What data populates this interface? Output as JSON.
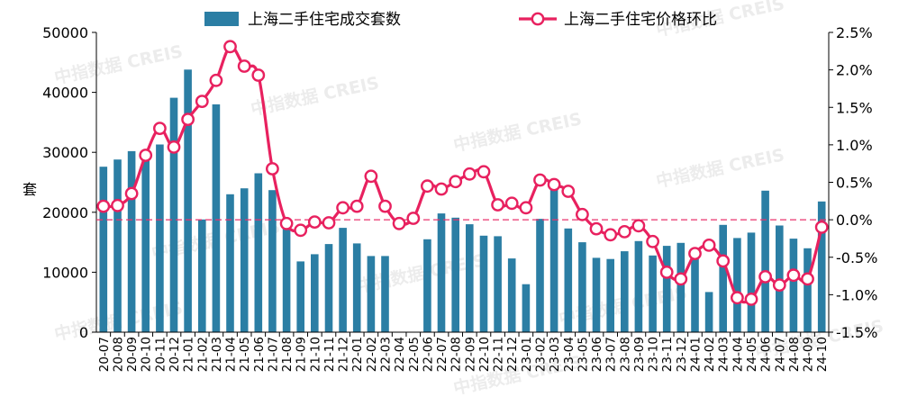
{
  "watermark": "中指数据 CREIS",
  "chart_data": {
    "type": "bar+line",
    "title": "",
    "categories": [
      "20-07",
      "20-08",
      "20-09",
      "20-10",
      "20-11",
      "20-12",
      "21-01",
      "21-02",
      "21-03",
      "21-04",
      "21-05",
      "21-06",
      "21-07",
      "21-08",
      "21-09",
      "21-10",
      "21-11",
      "21-12",
      "22-01",
      "22-02",
      "22-03",
      "22-04",
      "22-05",
      "22-06",
      "22-07",
      "22-08",
      "22-09",
      "22-10",
      "22-11",
      "22-12",
      "23-01",
      "23-02",
      "23-03",
      "23-04",
      "23-05",
      "23-06",
      "23-07",
      "23-08",
      "23-09",
      "23-10",
      "23-11",
      "23-12",
      "24-01",
      "24-02",
      "24-03",
      "24-04",
      "24-05",
      "24-06",
      "24-07",
      "24-08",
      "24-09",
      "24-10"
    ],
    "y_left": {
      "label": "套",
      "ylim": [
        0,
        50000
      ],
      "ticks": [
        0,
        10000,
        20000,
        30000,
        40000,
        50000
      ]
    },
    "y_right": {
      "ylim": [
        -1.5,
        2.5
      ],
      "ticks": [
        "-1.5%",
        "-1.0%",
        "-0.5%",
        "0.0%",
        "0.5%",
        "1.0%",
        "1.5%",
        "2.0%",
        "2.5%"
      ]
    },
    "legend_position": "top",
    "zero_reference_line": {
      "axis": "right",
      "value": 0.0,
      "style": "dashed",
      "color": "#e8336d"
    },
    "series": [
      {
        "name": "上海二手住宅成交套数",
        "type": "bar",
        "axis": "left",
        "color": "#2b7ea4",
        "values": [
          27600,
          28800,
          30200,
          30100,
          31300,
          39100,
          43800,
          18800,
          38000,
          23000,
          24000,
          26500,
          23700,
          17800,
          11800,
          13000,
          14700,
          17400,
          14800,
          12700,
          12700,
          0,
          0,
          15500,
          19800,
          19100,
          18000,
          16100,
          16000,
          12300,
          8000,
          18900,
          24300,
          17300,
          15000,
          12400,
          12200,
          13500,
          15200,
          12800,
          14400,
          14900,
          12900,
          6700,
          17900,
          15700,
          16600,
          23600,
          17800,
          15600,
          14000,
          21800
        ]
      },
      {
        "name": "上海二手住宅价格环比",
        "type": "line",
        "axis": "right",
        "color": "#e8215f",
        "marker": "circle",
        "values": [
          0.18,
          0.19,
          0.35,
          0.86,
          1.22,
          0.97,
          1.34,
          1.58,
          1.86,
          2.31,
          2.05,
          1.93,
          0.68,
          -0.05,
          -0.14,
          -0.03,
          -0.04,
          0.16,
          0.18,
          0.58,
          0.18,
          -0.05,
          0.02,
          0.45,
          0.41,
          0.51,
          0.61,
          0.64,
          0.2,
          0.22,
          0.16,
          0.53,
          0.47,
          0.38,
          0.07,
          -0.12,
          -0.2,
          -0.16,
          -0.08,
          -0.29,
          -0.7,
          -0.79,
          -0.45,
          -0.34,
          -0.55,
          -1.04,
          -1.06,
          -0.76,
          -0.87,
          -0.74,
          -0.79,
          -0.1
        ]
      }
    ]
  }
}
